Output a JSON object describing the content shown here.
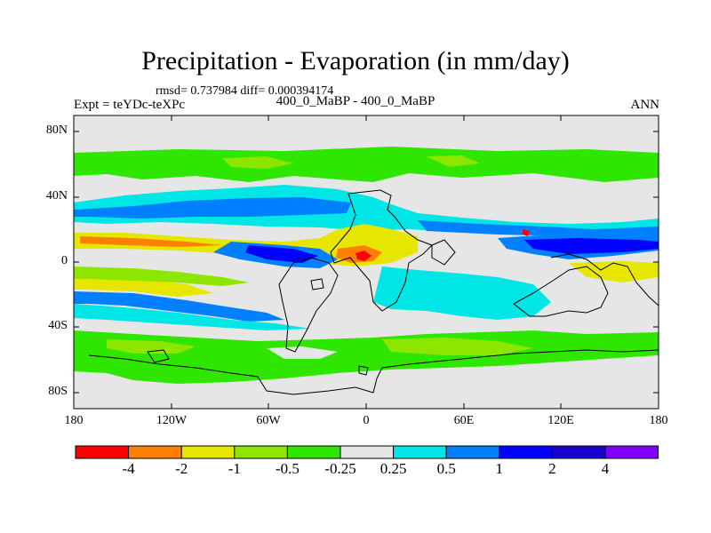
{
  "title": "Precipitation - Evaporation (in mm/day)",
  "stats": "rmsd= 0.737984 diff= 0.000394174",
  "expt": "Expt = teYDc-teXPc",
  "center_label": "400_0_MaBP - 400_0_MaBP",
  "season": "ANN",
  "lat_ticks": [
    "80N",
    "40N",
    "0",
    "40S",
    "80S"
  ],
  "lon_ticks": [
    "180",
    "120W",
    "60W",
    "0",
    "60E",
    "120E",
    "180"
  ],
  "colorbar": {
    "labels": [
      "-4",
      "-2",
      "-1",
      "-0.5",
      "-0.25",
      "0.25",
      "0.5",
      "1",
      "2",
      "4"
    ],
    "colors": [
      "#ff0000",
      "#ff8000",
      "#e6e600",
      "#8ce600",
      "#2ee600",
      "#e6e6e6",
      "#00e6e6",
      "#0080ff",
      "#0000ff",
      "#1a00cc",
      "#8000ff"
    ]
  },
  "palette": {
    "land_neutral": "#e6e6e6",
    "light_green": "#8ce600",
    "green": "#2ee600",
    "yellow": "#e6e600",
    "orange": "#ff8000",
    "red": "#ff0000",
    "cyan": "#00e6e6",
    "blue": "#0080ff",
    "deep_blue": "#0000ff",
    "navy": "#1a00cc",
    "coast": "#000000"
  }
}
